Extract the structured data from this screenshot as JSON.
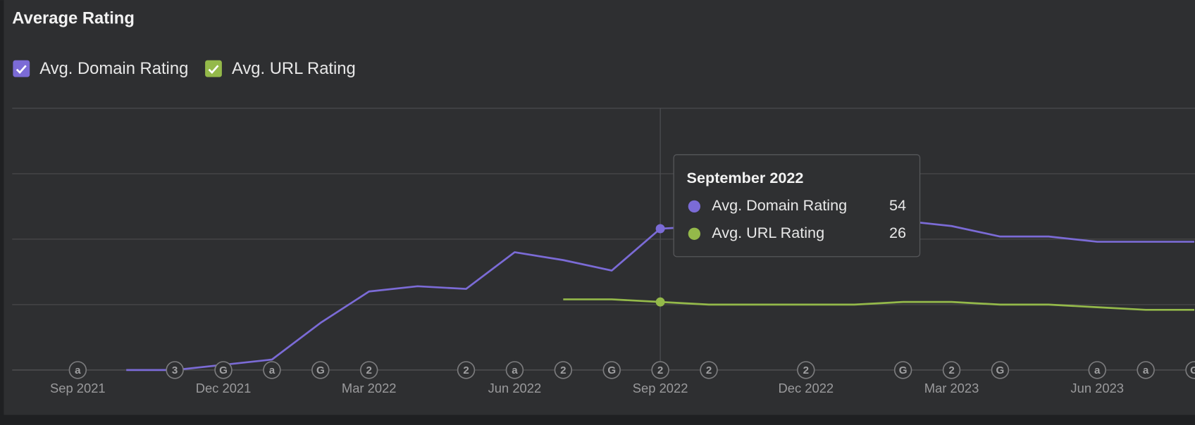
{
  "chart_data": {
    "type": "line",
    "title": "Average Rating",
    "categories": [
      "Sep 2021",
      null,
      null,
      "Dec 2021",
      null,
      null,
      "Mar 2022",
      null,
      null,
      "Jun 2022",
      null,
      null,
      "Sep 2022",
      null,
      null,
      "Dec 2022",
      null,
      null,
      "Mar 2023",
      null,
      null,
      "Jun 2023",
      null,
      null
    ],
    "series": [
      {
        "name": "Avg. Domain Rating",
        "color": "#7b6bd6",
        "values": [
          null,
          0,
          0,
          2,
          4,
          18,
          30,
          32,
          31,
          45,
          42,
          38,
          54,
          55,
          56,
          56,
          57,
          57,
          55,
          51,
          51,
          49,
          49,
          49
        ]
      },
      {
        "name": "Avg. URL Rating",
        "color": "#94b94a",
        "values": [
          null,
          null,
          null,
          null,
          null,
          null,
          null,
          null,
          null,
          null,
          27,
          27,
          26,
          25,
          25,
          25,
          25,
          26,
          26,
          25,
          25,
          24,
          23,
          23
        ]
      }
    ],
    "ylim": [
      0,
      100
    ],
    "yticks": [
      0,
      25,
      50,
      75,
      100
    ],
    "grid": true,
    "markers": [
      "a",
      null,
      "3",
      "G",
      "a",
      "G",
      "2",
      null,
      "2",
      "a",
      "2",
      "G",
      "2",
      "2",
      null,
      "2",
      null,
      "G",
      "2",
      "G",
      null,
      "a",
      "a",
      "G"
    ],
    "tooltip": {
      "title": "September 2022",
      "index": 12
    }
  }
}
